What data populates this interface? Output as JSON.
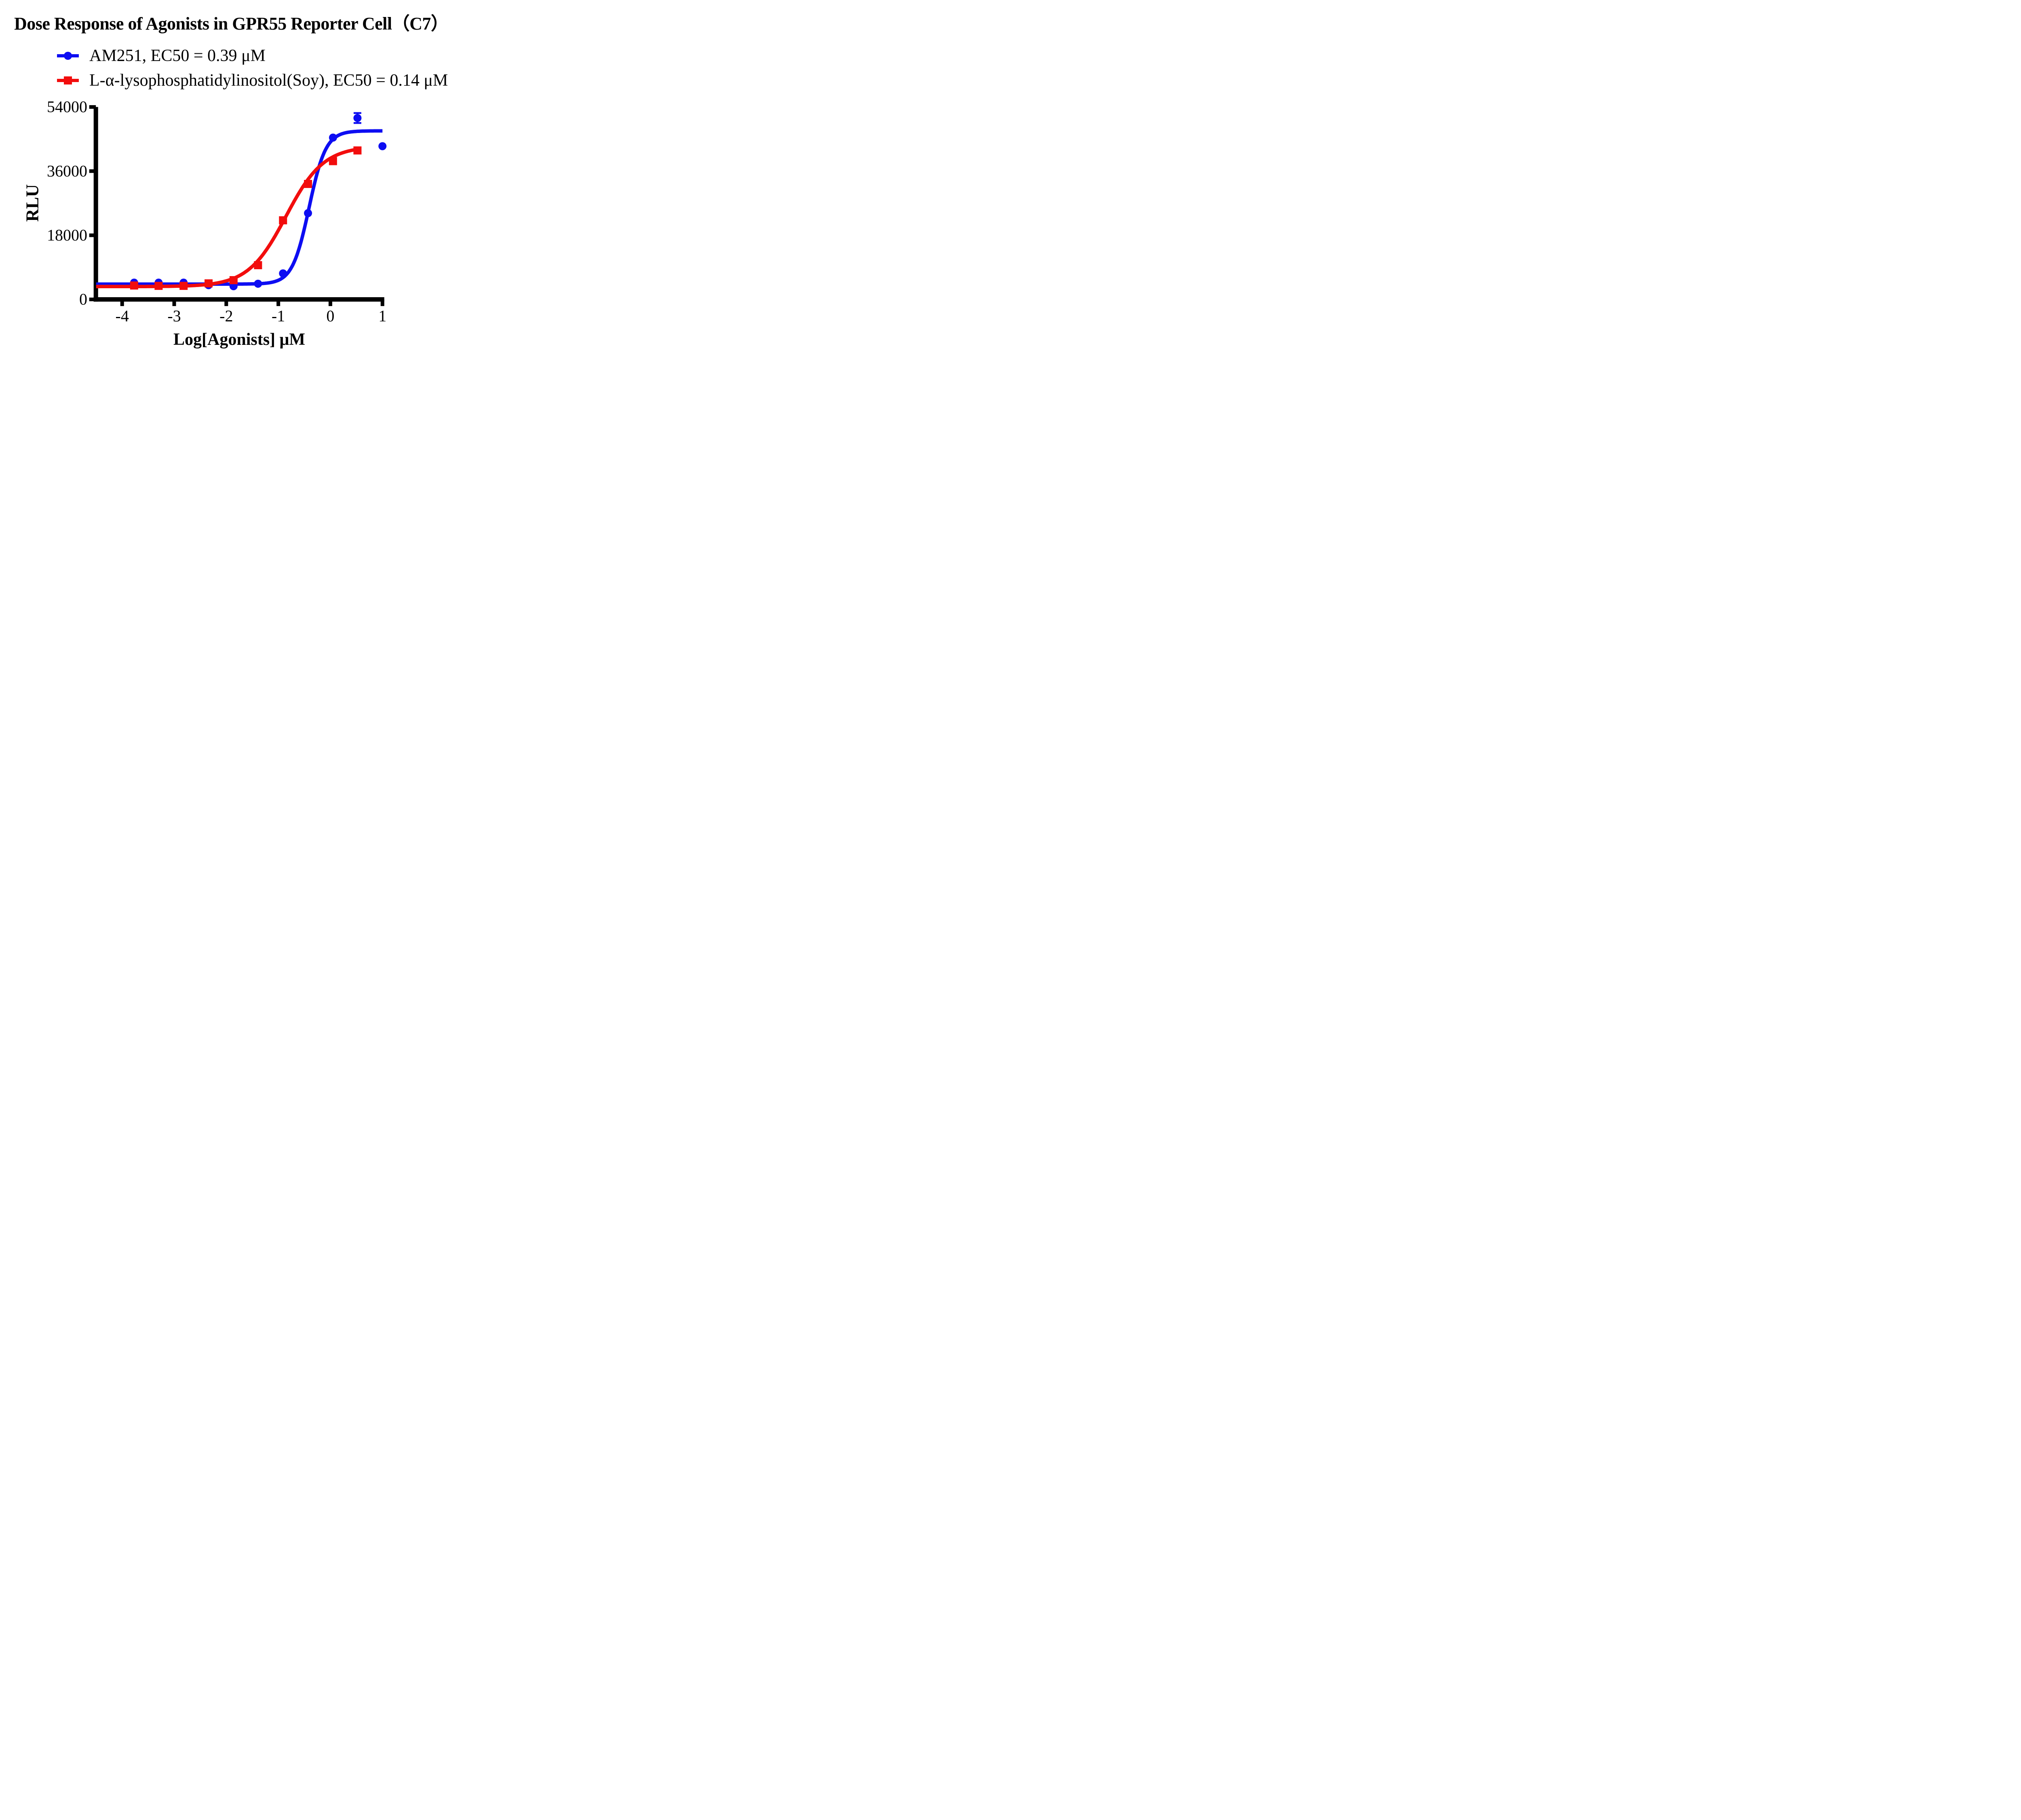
{
  "title": "Dose Response of Agonists in GPR55 Reporter Cell（C7）",
  "legend": [
    {
      "label": "AM251, EC50 = 0.39 μM",
      "marker": "circle",
      "color": "#0d0df2"
    },
    {
      "label": "L-α-lysophosphatidylinositol(Soy), EC50 = 0.14 μM",
      "marker": "square",
      "color": "#f20d0d"
    }
  ],
  "chart_data": {
    "type": "scatter",
    "title": "Dose Response of Agonists in GPR55 Reporter Cell（C7）",
    "xlabel": "Log[Agonists] μM",
    "ylabel": "RLU",
    "x_tick_values": [
      -4,
      -3,
      -2,
      -1,
      0,
      1
    ],
    "x_tick_labels": [
      "-4",
      "-3",
      "-2",
      "-1",
      "0",
      "1"
    ],
    "y_tick_values": [
      0,
      18000,
      36000,
      54000
    ],
    "y_tick_labels": [
      "0",
      "18000",
      "36000",
      "54000"
    ],
    "xlim": [
      -4.5,
      1.05
    ],
    "ylim": [
      0,
      54000
    ],
    "grid": false,
    "legend_position": "top-left",
    "series": [
      {
        "name": "AM251",
        "ec50_um": 0.39,
        "color": "#0d0df2",
        "marker": "circle",
        "x": [
          -3.77,
          -3.3,
          -2.82,
          -2.34,
          -1.86,
          -1.39,
          -0.91,
          -0.43,
          0.05,
          0.52,
          1.0
        ],
        "y": [
          4700,
          4700,
          4700,
          4000,
          3700,
          4400,
          7300,
          24200,
          45400,
          50900,
          43000
        ],
        "error_bar": {
          "x": 0.52,
          "y": 50900,
          "err": 1400
        },
        "fit": {
          "bottom": 4300,
          "top": 47300,
          "logec50": -0.409,
          "hill": 2.7,
          "x_start": -4.5,
          "x_end": 1.0
        }
      },
      {
        "name": "L-α-lysophosphatidylinositol(Soy)",
        "ec50_um": 0.14,
        "color": "#f20d0d",
        "marker": "square",
        "x": [
          -3.77,
          -3.3,
          -2.82,
          -2.34,
          -1.86,
          -1.39,
          -0.91,
          -0.43,
          0.05,
          0.52
        ],
        "y": [
          3900,
          3800,
          3800,
          4500,
          5400,
          9600,
          22200,
          32400,
          38800,
          41800
        ],
        "fit": {
          "bottom": 3600,
          "top": 43000,
          "logec50": -0.854,
          "hill": 1.2,
          "x_start": -4.5,
          "x_end": 0.53
        }
      }
    ]
  }
}
